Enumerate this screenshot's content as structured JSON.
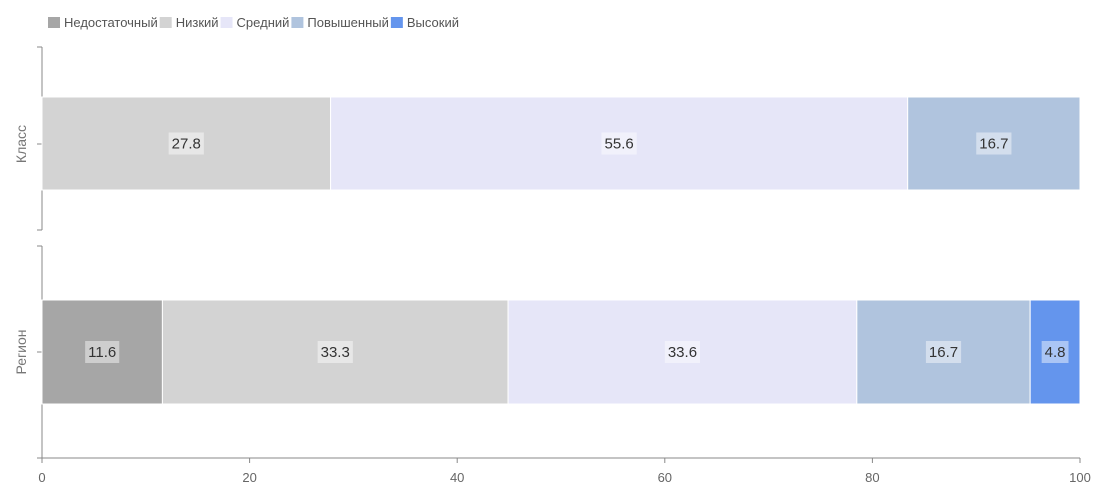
{
  "chart_data": {
    "type": "bar",
    "orientation": "horizontal",
    "stacked": true,
    "categories": [
      "Класс",
      "Регион"
    ],
    "series": [
      {
        "name": "Недостаточный",
        "color": "#a6a6a6",
        "values": [
          0,
          11.6
        ]
      },
      {
        "name": "Низкий",
        "color": "#d3d3d3",
        "values": [
          27.8,
          33.3
        ]
      },
      {
        "name": "Средний",
        "color": "#e6e6f8",
        "values": [
          55.6,
          33.6
        ]
      },
      {
        "name": "Повышенный",
        "color": "#b0c4de",
        "values": [
          16.7,
          16.7
        ]
      },
      {
        "name": "Высокий",
        "color": "#6495ed",
        "values": [
          0,
          4.8
        ]
      }
    ],
    "xlim": [
      0,
      100
    ],
    "xticks": [
      0,
      20,
      40,
      60,
      80,
      100
    ],
    "legend_position": "top-left",
    "grid": false
  }
}
